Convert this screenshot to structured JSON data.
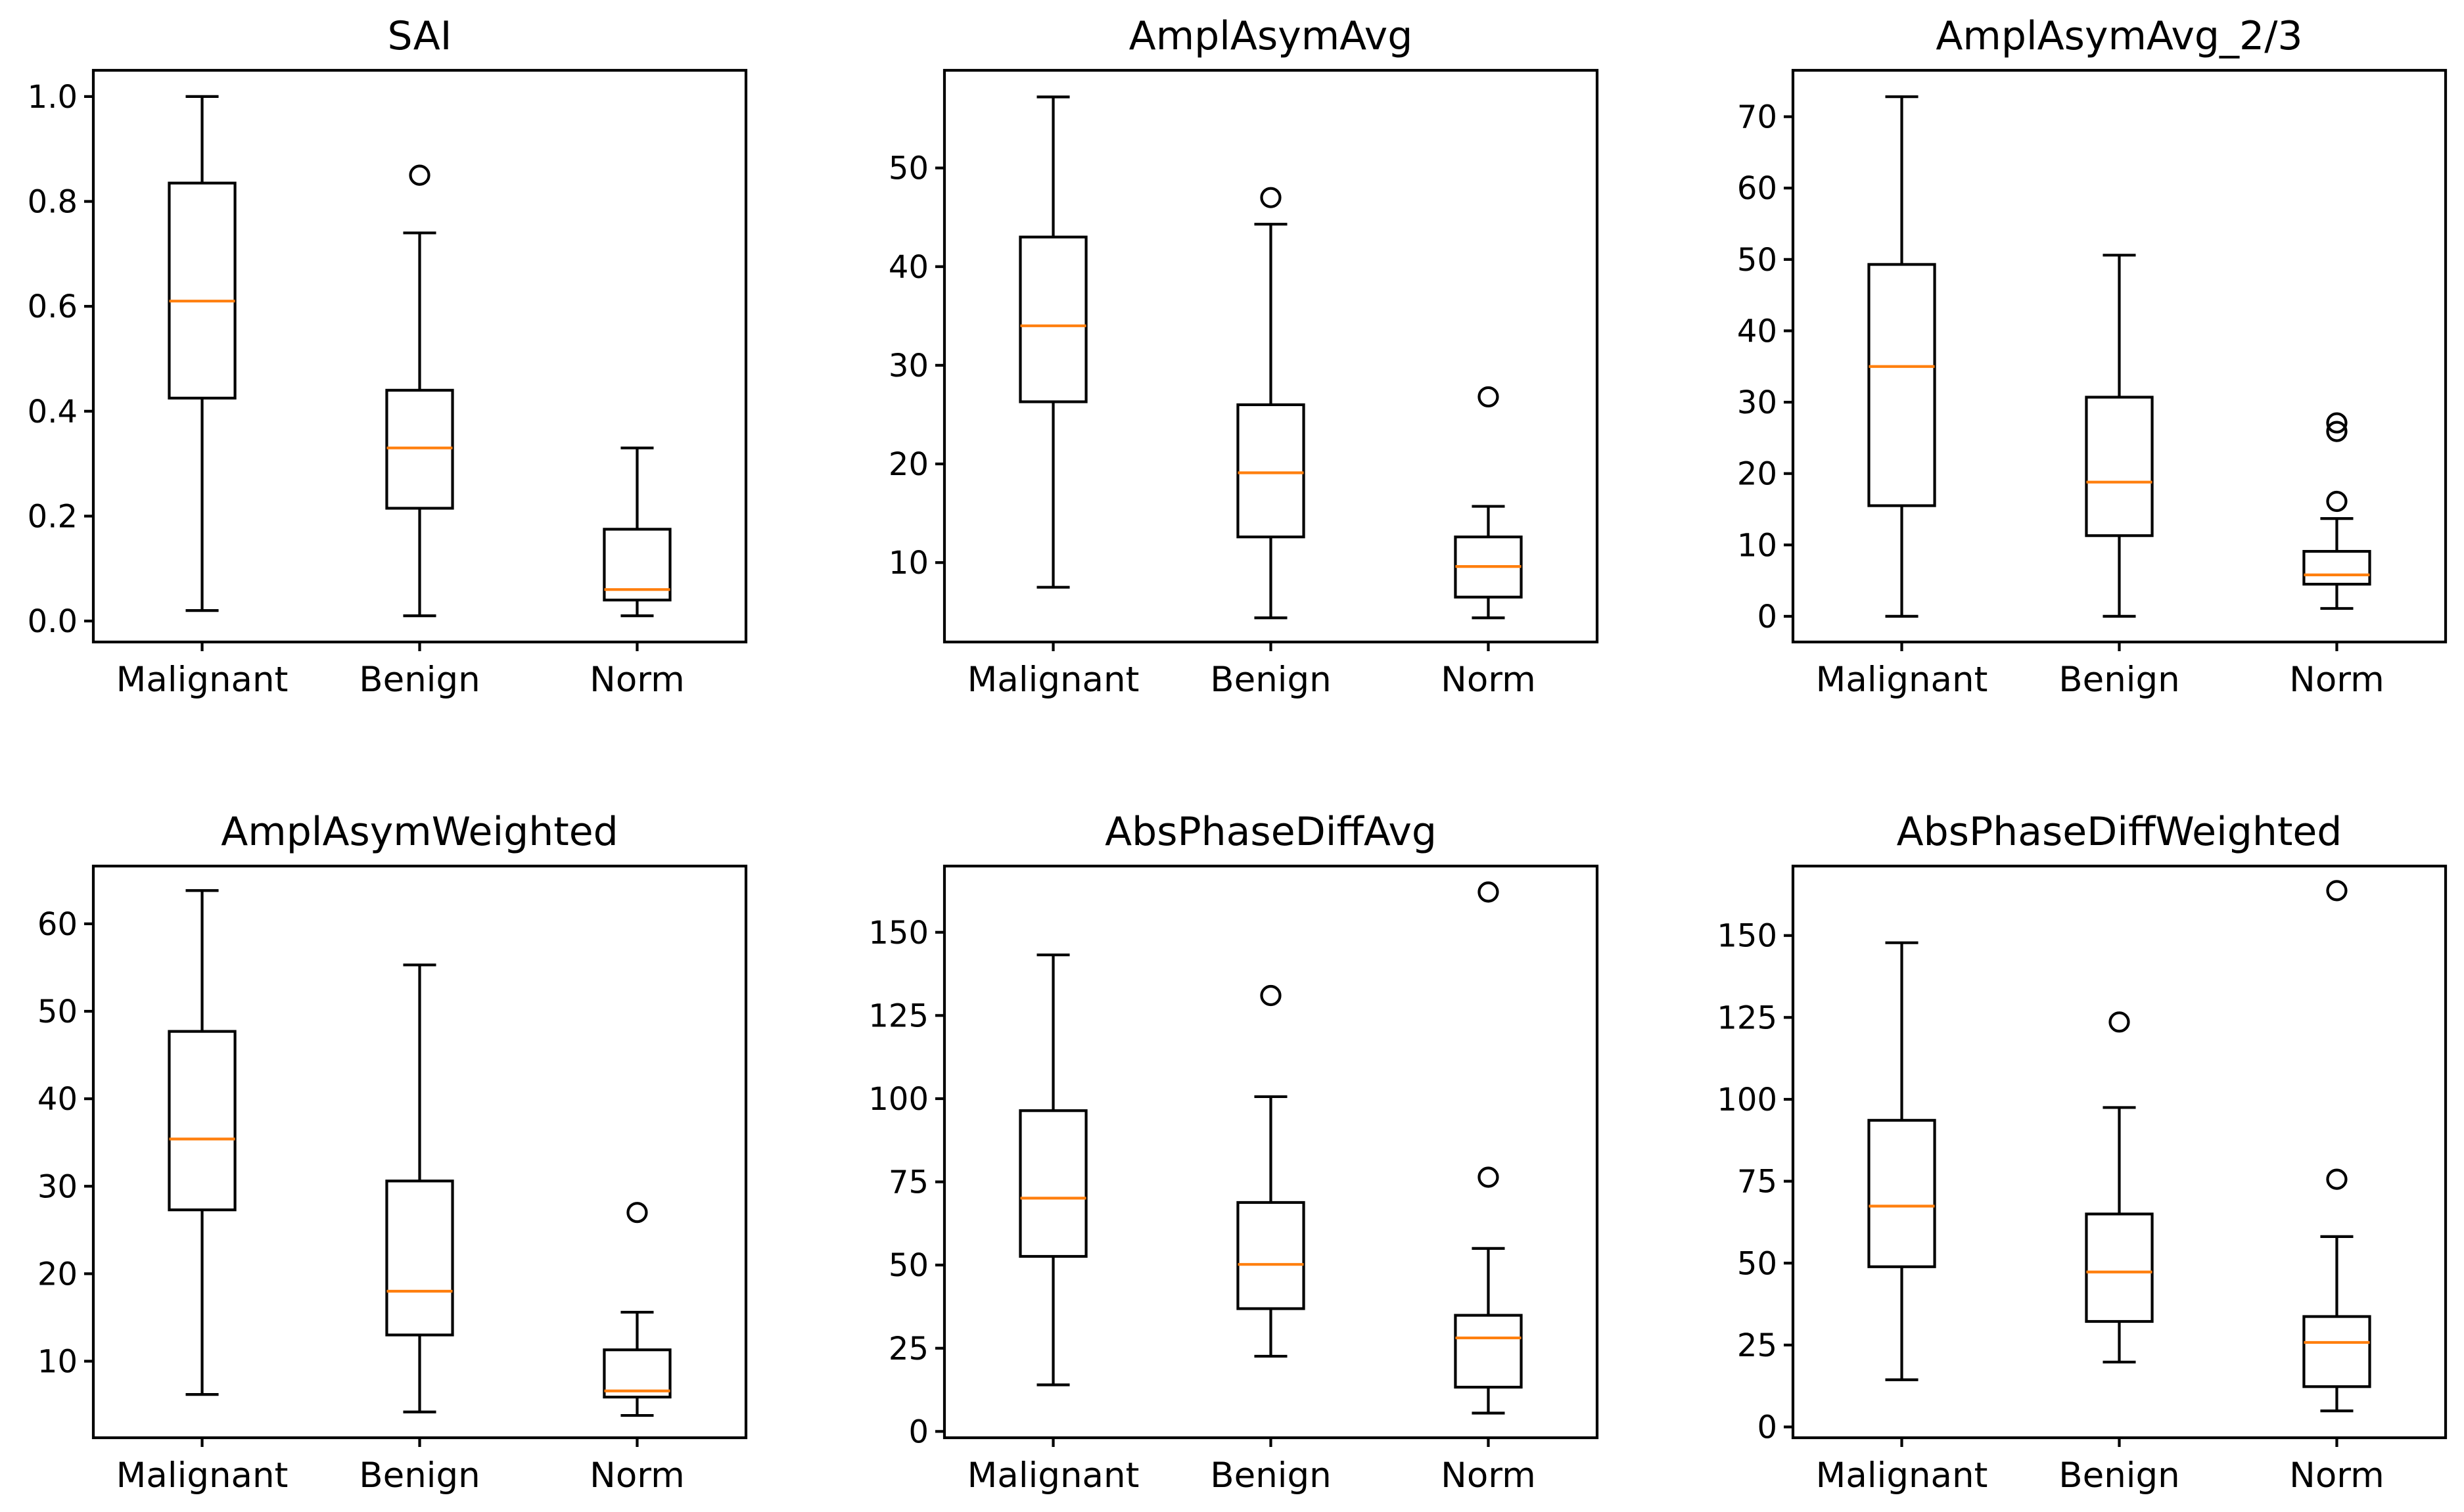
{
  "chart_data": [
    {
      "type": "box",
      "title": "SAI",
      "categories": [
        "Malignant",
        "Benign",
        "Norm"
      ],
      "ylim": [
        -0.04,
        1.05
      ],
      "yticks": [
        0.0,
        0.2,
        0.4,
        0.6,
        0.8,
        1.0
      ],
      "ytick_labels": [
        "0.0",
        "0.2",
        "0.4",
        "0.6",
        "0.8",
        "1.0"
      ],
      "boxes": [
        {
          "min": 0.02,
          "q1": 0.425,
          "median": 0.61,
          "q3": 0.835,
          "max": 1.0,
          "outliers": []
        },
        {
          "min": 0.01,
          "q1": 0.215,
          "median": 0.33,
          "q3": 0.44,
          "max": 0.74,
          "outliers": [
            0.85
          ]
        },
        {
          "min": 0.01,
          "q1": 0.04,
          "median": 0.06,
          "q3": 0.175,
          "max": 0.33,
          "outliers": []
        }
      ]
    },
    {
      "type": "box",
      "title": "AmplAsymAvg",
      "categories": [
        "Malignant",
        "Benign",
        "Norm"
      ],
      "ylim": [
        1.95,
        59.9
      ],
      "yticks": [
        10,
        20,
        30,
        40,
        50
      ],
      "ytick_labels": [
        "10",
        "20",
        "30",
        "40",
        "50"
      ],
      "boxes": [
        {
          "min": 7.5,
          "q1": 26.3,
          "median": 34.0,
          "q3": 43.0,
          "max": 57.2,
          "outliers": []
        },
        {
          "min": 4.4,
          "q1": 12.6,
          "median": 19.1,
          "q3": 26.0,
          "max": 44.3,
          "outliers": [
            47.0
          ]
        },
        {
          "min": 4.4,
          "q1": 6.5,
          "median": 9.6,
          "q3": 12.6,
          "max": 15.7,
          "outliers": [
            26.8
          ]
        }
      ]
    },
    {
      "type": "box",
      "title": "AmplAsymAvg_2/3",
      "categories": [
        "Malignant",
        "Benign",
        "Norm"
      ],
      "ylim": [
        -3.6,
        76.5
      ],
      "yticks": [
        0,
        10,
        20,
        30,
        40,
        50,
        60,
        70
      ],
      "ytick_labels": [
        "0",
        "10",
        "20",
        "30",
        "40",
        "50",
        "60",
        "70"
      ],
      "boxes": [
        {
          "min": 0.0,
          "q1": 15.5,
          "median": 35.0,
          "q3": 49.3,
          "max": 72.8,
          "outliers": []
        },
        {
          "min": 0.0,
          "q1": 11.3,
          "median": 18.8,
          "q3": 30.7,
          "max": 50.6,
          "outliers": []
        },
        {
          "min": 1.1,
          "q1": 4.5,
          "median": 5.8,
          "q3": 9.1,
          "max": 13.7,
          "outliers": [
            16.1,
            25.9,
            27.1
          ]
        }
      ]
    },
    {
      "type": "box",
      "title": "AmplAsymWeighted",
      "categories": [
        "Malignant",
        "Benign",
        "Norm"
      ],
      "ylim": [
        1.25,
        66.6
      ],
      "yticks": [
        10,
        20,
        30,
        40,
        50,
        60
      ],
      "ytick_labels": [
        "10",
        "20",
        "30",
        "40",
        "50",
        "60"
      ],
      "boxes": [
        {
          "min": 6.2,
          "q1": 27.3,
          "median": 35.4,
          "q3": 47.7,
          "max": 63.8,
          "outliers": []
        },
        {
          "min": 4.2,
          "q1": 13.0,
          "median": 18.0,
          "q3": 30.6,
          "max": 55.3,
          "outliers": []
        },
        {
          "min": 3.8,
          "q1": 5.9,
          "median": 6.6,
          "q3": 11.3,
          "max": 15.6,
          "outliers": [
            27.0
          ]
        }
      ]
    },
    {
      "type": "box",
      "title": "AbsPhaseDiffAvg",
      "categories": [
        "Malignant",
        "Benign",
        "Norm"
      ],
      "ylim": [
        -1.9,
        169.9
      ],
      "yticks": [
        0,
        25,
        50,
        75,
        100,
        125,
        150
      ],
      "ytick_labels": [
        "0",
        "25",
        "50",
        "75",
        "100",
        "125",
        "150"
      ],
      "boxes": [
        {
          "min": 14.0,
          "q1": 52.6,
          "median": 70.1,
          "q3": 96.4,
          "max": 143.2,
          "outliers": []
        },
        {
          "min": 22.6,
          "q1": 36.9,
          "median": 50.2,
          "q3": 68.8,
          "max": 100.6,
          "outliers": [
            131.0
          ]
        },
        {
          "min": 5.5,
          "q1": 13.3,
          "median": 28.1,
          "q3": 34.9,
          "max": 55.0,
          "outliers": [
            76.4,
            162.1
          ]
        }
      ]
    },
    {
      "type": "box",
      "title": "AbsPhaseDiffWeighted",
      "categories": [
        "Malignant",
        "Benign",
        "Norm"
      ],
      "ylim": [
        -3.3,
        171.2
      ],
      "yticks": [
        0,
        25,
        50,
        75,
        100,
        125,
        150
      ],
      "ytick_labels": [
        "0",
        "25",
        "50",
        "75",
        "100",
        "125",
        "150"
      ],
      "boxes": [
        {
          "min": 14.4,
          "q1": 48.9,
          "median": 67.4,
          "q3": 93.6,
          "max": 147.8,
          "outliers": []
        },
        {
          "min": 19.8,
          "q1": 32.2,
          "median": 47.3,
          "q3": 65.0,
          "max": 97.5,
          "outliers": [
            123.6
          ]
        },
        {
          "min": 4.9,
          "q1": 12.3,
          "median": 25.8,
          "q3": 33.7,
          "max": 58.1,
          "outliers": [
            75.6,
            163.7
          ]
        }
      ]
    }
  ],
  "colors": {
    "box_edge": "#000000",
    "median": "#ff7f0e",
    "background": "#ffffff"
  }
}
